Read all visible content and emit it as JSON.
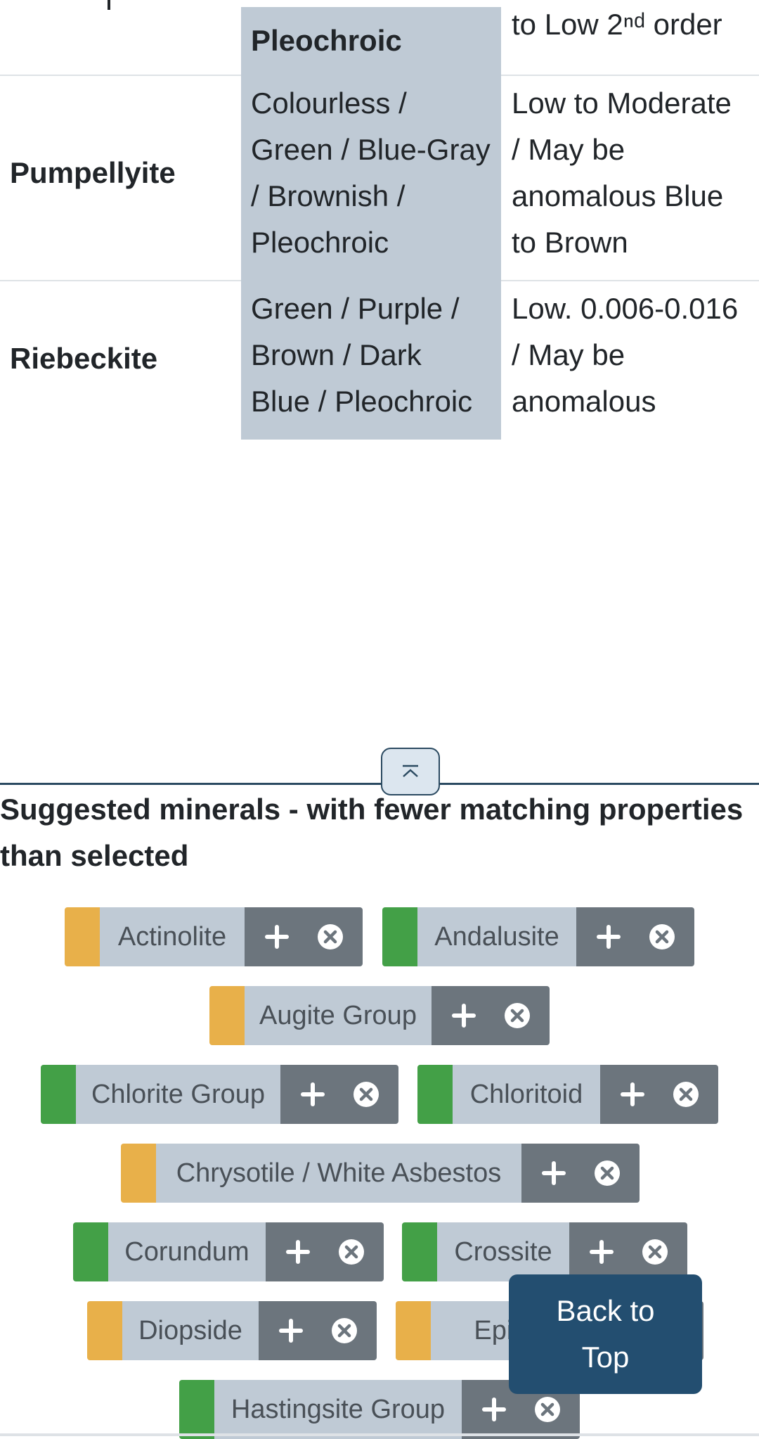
{
  "table": {
    "top_row": {
      "col2_fragment": "Pleochroic",
      "col3_fragment": "to Low 2ⁿᵈ order"
    },
    "rows": [
      {
        "name": "Pumpellyite",
        "colour_lines": [
          "Colourless /",
          "Green / Blue-Gray",
          "/ Brownish /",
          "Pleochroic"
        ],
        "birefringence_lines": [
          "Low to Moderate",
          "/ May be",
          "anomalous Blue",
          "to Brown"
        ]
      },
      {
        "name": "Riebeckite",
        "colour_lines": [
          "Green / Purple /",
          "Brown / Dark",
          "Blue / Pleochroic"
        ],
        "birefringence_lines": [
          "Low. 0.006-0.016",
          "/ May be",
          "anomalous"
        ]
      }
    ]
  },
  "suggested": {
    "title": "Suggested minerals - with fewer matching properties than selected",
    "chips": [
      {
        "label": "Actinolite",
        "color": "#e8b04a"
      },
      {
        "label": "Andalusite",
        "color": "#43a047"
      },
      {
        "label": "Augite Group",
        "color": "#e8b04a"
      },
      {
        "label": "Chlorite Group",
        "color": "#43a047"
      },
      {
        "label": "Chloritoid",
        "color": "#43a047"
      },
      {
        "label": "Chrysotile / White Asbestos",
        "color": "#e8b04a"
      },
      {
        "label": "Corundum",
        "color": "#43a047"
      },
      {
        "label": "Crossite",
        "color": "#43a047"
      },
      {
        "label": "Diopside",
        "color": "#e8b04a"
      },
      {
        "label": "Epido",
        "color": "#e8b04a"
      },
      {
        "label": "Hastingsite Group",
        "color": "#43a047"
      }
    ]
  },
  "back_to_top": {
    "label": "Back to Top"
  },
  "icons": {
    "add": "plus-icon",
    "remove": "close-circle-icon",
    "collapse": "chevron-up-bar-icon"
  }
}
